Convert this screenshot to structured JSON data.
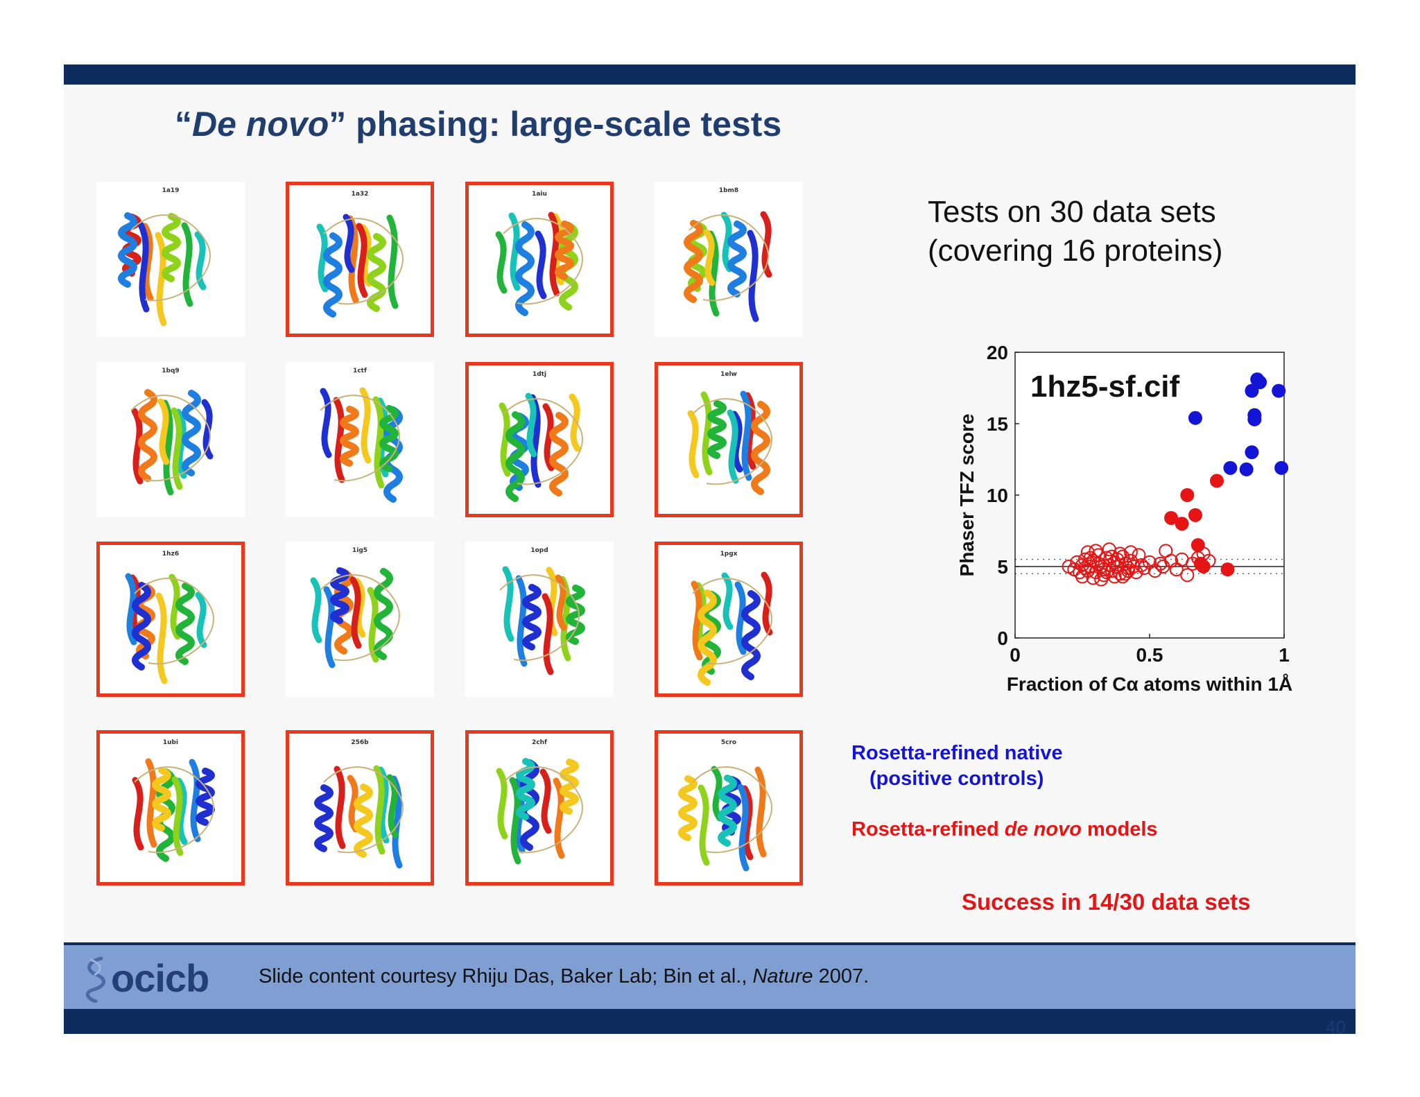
{
  "slide": {
    "title_quote_open": "“",
    "title_italic": "De novo",
    "title_quote_close": "”",
    "title_rest": " phasing: large-scale tests",
    "tests_line1": "Tests on 30 data sets",
    "tests_line2": "(covering 16 proteins)",
    "legend_native_line1": "Rosetta-refined native",
    "legend_native_line2": "(positive controls)",
    "legend_denovo_pre": "Rosetta-refined ",
    "legend_denovo_italic": "de novo",
    "legend_denovo_post": " models",
    "success": "Success in 14/30 data sets",
    "credit_pre": "Slide content courtesy Rhiju Das, Baker Lab; Bin et al., ",
    "credit_italic": "Nature",
    "credit_post": " 2007.",
    "logo_text": "ocicb",
    "page_number": "40",
    "colors": {
      "bar": "#0d2d5e",
      "footer": "#7f9fd3",
      "title": "#1f3d6e",
      "highlight_border": "#e8391f",
      "native": "#1414d6",
      "denovo": "#e51515"
    }
  },
  "proteins": [
    {
      "label": "1a19",
      "highlighted": false
    },
    {
      "label": "1a32",
      "highlighted": true
    },
    {
      "label": "1aiu",
      "highlighted": true
    },
    {
      "label": "1bm8",
      "highlighted": false
    },
    {
      "label": "1bq9",
      "highlighted": false
    },
    {
      "label": "1ctf",
      "highlighted": false
    },
    {
      "label": "1dtj",
      "highlighted": true
    },
    {
      "label": "1elw",
      "highlighted": true
    },
    {
      "label": "1hz6",
      "highlighted": true
    },
    {
      "label": "1ig5",
      "highlighted": false
    },
    {
      "label": "1opd",
      "highlighted": false
    },
    {
      "label": "1pgx",
      "highlighted": true
    },
    {
      "label": "1ubi",
      "highlighted": true
    },
    {
      "label": "256b",
      "highlighted": true
    },
    {
      "label": "2chf",
      "highlighted": true
    },
    {
      "label": "5cro",
      "highlighted": true
    }
  ],
  "chart_data": {
    "type": "scatter",
    "annotation": "1hz5-sf.cif",
    "xlabel": "Fraction of Cα atoms within 1Å",
    "ylabel": "Phaser TFZ score",
    "xlim": [
      0,
      1
    ],
    "ylim": [
      0,
      20
    ],
    "xticks": [
      "0",
      "0.5",
      "1"
    ],
    "yticks": [
      "0",
      "5",
      "10",
      "15",
      "20"
    ],
    "reference_lines": {
      "solid": 5,
      "dotted": [
        4.5,
        5.5
      ]
    },
    "series": [
      {
        "name": "Rosetta-refined native",
        "color": "#1414d6",
        "marker": "filled",
        "x": [
          0.67,
          0.8,
          0.86,
          0.88,
          0.88,
          0.89,
          0.89,
          0.9,
          0.91,
          0.98,
          0.99
        ],
        "y": [
          15.4,
          11.9,
          11.8,
          17.3,
          13.0,
          15.3,
          15.6,
          18.1,
          17.9,
          17.3,
          11.9
        ]
      },
      {
        "name": "Rosetta-refined de novo models (successful)",
        "color": "#e51515",
        "marker": "filled",
        "x": [
          0.58,
          0.62,
          0.64,
          0.67,
          0.68,
          0.69,
          0.7,
          0.75,
          0.79
        ],
        "y": [
          8.4,
          8.0,
          10.0,
          8.6,
          6.5,
          5.2,
          5.0,
          11.0,
          4.8
        ]
      },
      {
        "name": "Rosetta-refined de novo models",
        "color": "#e51515",
        "marker": "open",
        "x": [
          0.2,
          0.22,
          0.23,
          0.24,
          0.25,
          0.26,
          0.27,
          0.28,
          0.29,
          0.3,
          0.31,
          0.32,
          0.33,
          0.34,
          0.35,
          0.36,
          0.37,
          0.38,
          0.39,
          0.4,
          0.41,
          0.42,
          0.43,
          0.44,
          0.45,
          0.46,
          0.47,
          0.48,
          0.5,
          0.52,
          0.54,
          0.55,
          0.56,
          0.58,
          0.6,
          0.62,
          0.64,
          0.66,
          0.68,
          0.7,
          0.72,
          0.25,
          0.27,
          0.29,
          0.31,
          0.33,
          0.35,
          0.37,
          0.39,
          0.41,
          0.43,
          0.28,
          0.32,
          0.36,
          0.4,
          0.3,
          0.34,
          0.38,
          0.26,
          0.42
        ],
        "y": [
          5.0,
          4.8,
          5.3,
          4.6,
          5.1,
          5.5,
          4.7,
          5.0,
          5.4,
          4.6,
          5.2,
          5.0,
          4.8,
          5.6,
          5.1,
          4.7,
          5.3,
          5.0,
          4.5,
          5.7,
          5.2,
          4.9,
          5.4,
          5.0,
          4.6,
          5.8,
          5.1,
          4.9,
          5.3,
          4.7,
          5.2,
          5.0,
          6.1,
          5.4,
          4.8,
          5.5,
          4.4,
          5.2,
          5.6,
          5.9,
          5.4,
          4.3,
          6.0,
          4.2,
          5.8,
          4.4,
          6.2,
          4.3,
          5.9,
          4.5,
          6.0,
          5.6,
          4.1,
          5.7,
          4.3,
          6.1,
          4.6,
          5.5,
          4.9,
          4.7
        ]
      }
    ]
  }
}
